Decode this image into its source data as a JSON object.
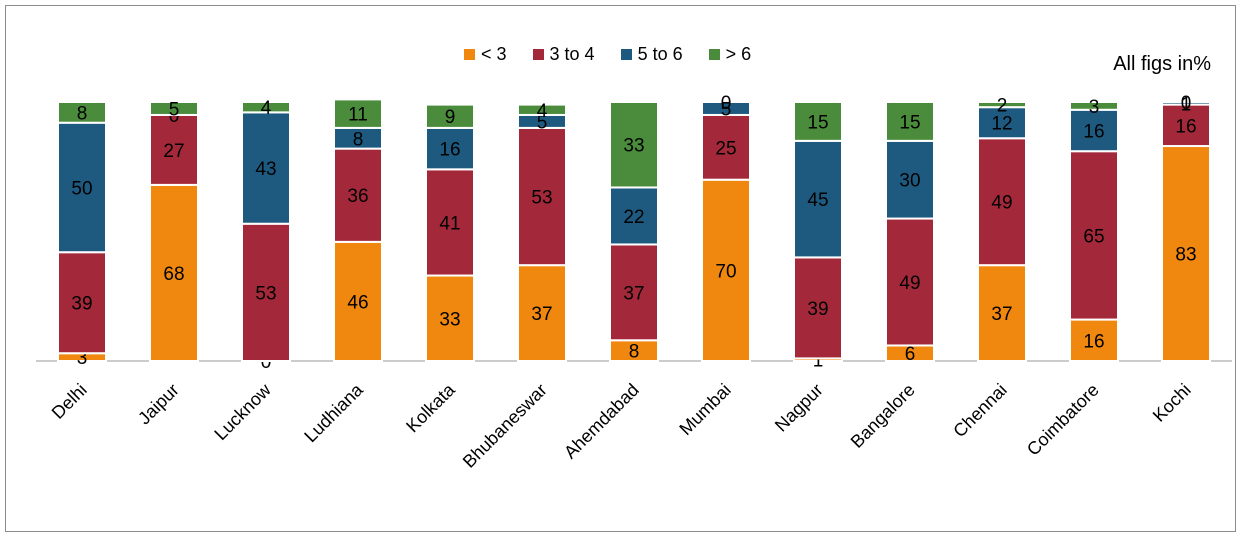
{
  "chart_data": {
    "type": "bar",
    "stacked": true,
    "categories": [
      "Delhi",
      "Jaipur",
      "Lucknow",
      "Ludhiana",
      "Kolkata",
      "Bhubaneswar",
      "Ahemdabad",
      "Mumbai",
      "Nagpur",
      "Bangalore",
      "Chennai",
      "Coimbatore",
      "Kochi"
    ],
    "series": [
      {
        "name": "< 3",
        "color": "#f0870f",
        "values": [
          3,
          68,
          0,
          46,
          33,
          37,
          8,
          70,
          1,
          6,
          37,
          16,
          83
        ]
      },
      {
        "name": "3 to 4",
        "color": "#a3293a",
        "values": [
          39,
          27,
          53,
          36,
          41,
          53,
          37,
          25,
          39,
          49,
          49,
          65,
          16
        ]
      },
      {
        "name": "5 to 6",
        "color": "#1e5a80",
        "values": [
          50,
          0,
          43,
          8,
          16,
          5,
          22,
          5,
          45,
          30,
          12,
          16,
          1
        ]
      },
      {
        "name": "> 6",
        "color": "#4a8c3c",
        "values": [
          8,
          5,
          4,
          11,
          9,
          4,
          33,
          0,
          15,
          15,
          2,
          3,
          0
        ]
      }
    ],
    "ylim": [
      0,
      100
    ],
    "legend_position": "top-center",
    "annotation": "All figs in%"
  }
}
